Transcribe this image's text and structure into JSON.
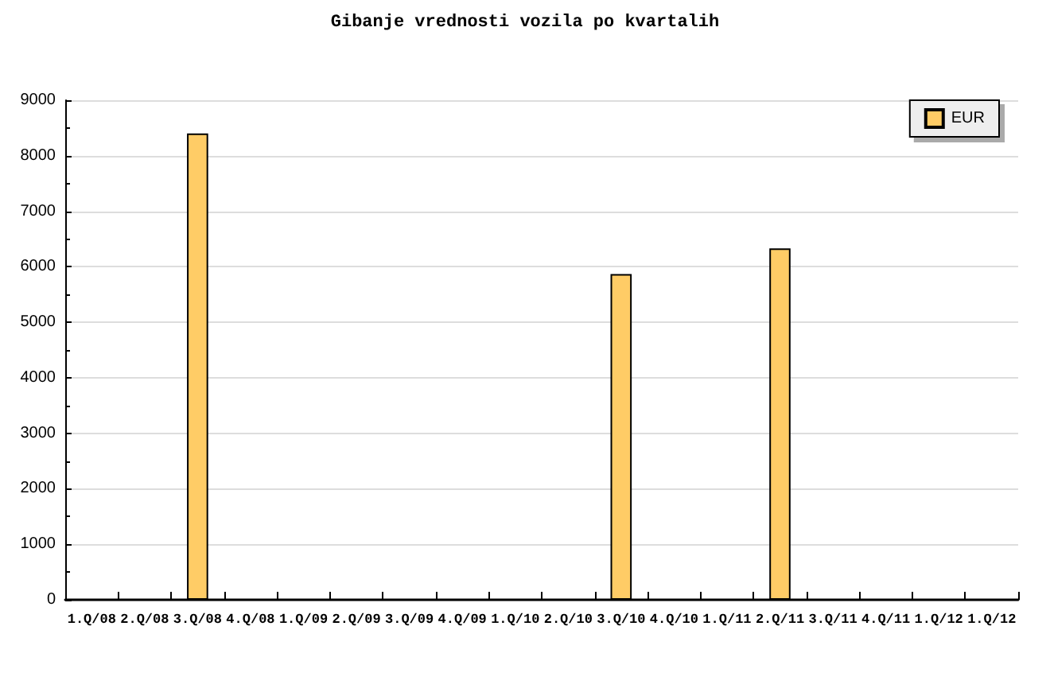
{
  "chart_data": {
    "type": "bar",
    "title": "Gibanje vrednosti vozila po kvartalih",
    "categories": [
      "1.Q/08",
      "2.Q/08",
      "3.Q/08",
      "4.Q/08",
      "1.Q/09",
      "2.Q/09",
      "3.Q/09",
      "4.Q/09",
      "1.Q/10",
      "2.Q/10",
      "3.Q/10",
      "4.Q/10",
      "1.Q/11",
      "2.Q/11",
      "3.Q/11",
      "4.Q/11",
      "1.Q/12",
      "1.Q/12"
    ],
    "series": [
      {
        "name": "EUR",
        "color": "#ffcc66",
        "values": [
          null,
          null,
          8400,
          null,
          null,
          null,
          null,
          null,
          null,
          null,
          5870,
          null,
          null,
          6330,
          null,
          null,
          null,
          null
        ]
      }
    ],
    "ylim": [
      0,
      9000
    ],
    "yticks": [
      0,
      1000,
      2000,
      3000,
      4000,
      5000,
      6000,
      7000,
      8000,
      9000
    ],
    "grid": "y",
    "legend": "top right"
  }
}
